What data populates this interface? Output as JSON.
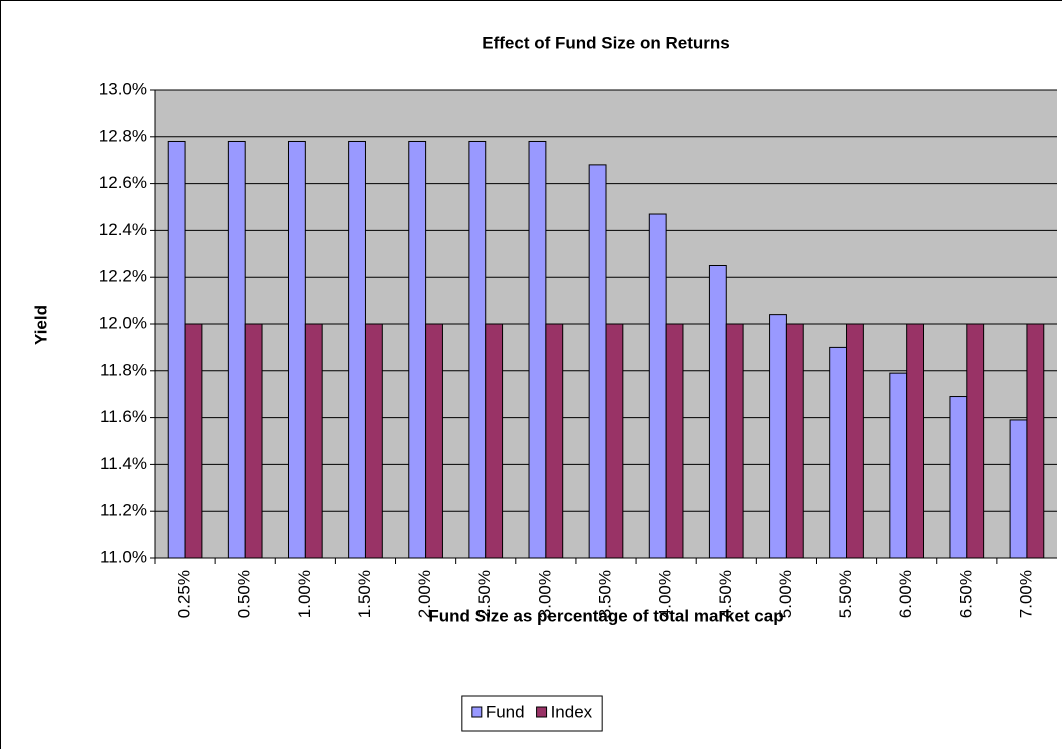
{
  "chart_data": {
    "type": "bar",
    "title": "Effect of Fund Size on Returns",
    "x_label": "Fund Size as percentage of total market cap",
    "y_label": "Yield",
    "categories": [
      "0.25%",
      "0.50%",
      "1.00%",
      "1.50%",
      "2.00%",
      "2.50%",
      "3.00%",
      "3.50%",
      "4.00%",
      "4.50%",
      "5.00%",
      "5.50%",
      "6.00%",
      "6.50%",
      "7.00%"
    ],
    "series": [
      {
        "name": "Fund",
        "color": "#9999ff",
        "values": [
          12.78,
          12.78,
          12.78,
          12.78,
          12.78,
          12.78,
          12.78,
          12.68,
          12.47,
          12.25,
          12.04,
          11.9,
          11.79,
          11.69,
          11.59
        ]
      },
      {
        "name": "Index",
        "color": "#993366",
        "values": [
          12.0,
          12.0,
          12.0,
          12.0,
          12.0,
          12.0,
          12.0,
          12.0,
          12.0,
          12.0,
          12.0,
          12.0,
          12.0,
          12.0,
          12.0
        ]
      }
    ],
    "ylim": [
      11.0,
      13.0
    ],
    "yticks": [
      {
        "value": 11.0,
        "label": "11.0%"
      },
      {
        "value": 11.2,
        "label": "11.2%"
      },
      {
        "value": 11.4,
        "label": "11.4%"
      },
      {
        "value": 11.6,
        "label": "11.6%"
      },
      {
        "value": 11.8,
        "label": "11.8%"
      },
      {
        "value": 12.0,
        "label": "12.0%"
      },
      {
        "value": 12.2,
        "label": "12.2%"
      },
      {
        "value": 12.4,
        "label": "12.4%"
      },
      {
        "value": 12.6,
        "label": "12.6%"
      },
      {
        "value": 12.8,
        "label": "12.8%"
      },
      {
        "value": 13.0,
        "label": "13.0%"
      }
    ],
    "grid": true,
    "legend": "bottom"
  }
}
